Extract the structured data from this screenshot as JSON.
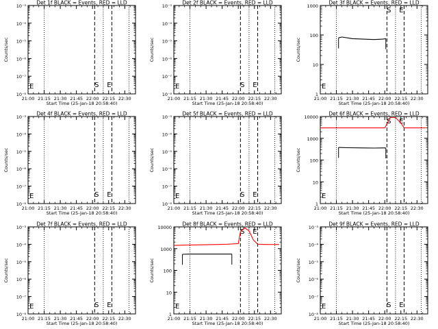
{
  "figure": {
    "x_tick_labels": [
      "21:00",
      "21:15",
      "21:30",
      "21:45",
      "22:00",
      "22:15",
      "22:30"
    ],
    "start_minute": 1260,
    "x_range_minutes": [
      1260,
      1360
    ],
    "dotted_lines_minutes": [
      1275,
      1330,
      1354
    ],
    "dashed_lines_minutes": [
      1322,
      1338
    ],
    "ylabel": "Counts/sec",
    "xlabel": "Start Time (25-Jan-18 20:58:40)",
    "marker_s": "S",
    "marker_e": "E",
    "color_black": "#000000",
    "color_red": "#ff0000"
  },
  "chart_data": [
    {
      "type": "line",
      "title": "Det 1f BLACK = Events, RED = LLD",
      "yscale": "log",
      "ylim": [
        1e-08,
        0.001
      ],
      "ytick_labels": [
        "10⁻³",
        "10⁻⁴",
        "10⁻⁵",
        "10⁻⁶",
        "10⁻⁷",
        "10⁻⁸"
      ],
      "series": []
    },
    {
      "type": "line",
      "title": "Det 2f BLACK = Events, RED = LLD",
      "yscale": "log",
      "ylim": [
        1e-08,
        0.001
      ],
      "ytick_labels": [
        "10⁻³",
        "10⁻⁴",
        "10⁻⁵",
        "10⁻⁶",
        "10⁻⁷",
        "10⁻⁸"
      ],
      "series": []
    },
    {
      "type": "line",
      "title": "Det 3f BLACK = Events, RED = LLD",
      "yscale": "log",
      "ylim": [
        1,
        1000
      ],
      "ytick_labels": [
        "1000",
        "100",
        "10",
        "1"
      ],
      "series": [
        {
          "color": "black",
          "x": [
            1277,
            1280,
            1290,
            1300,
            1310,
            1318,
            1321
          ],
          "y": [
            80,
            85,
            75,
            72,
            70,
            72,
            75
          ],
          "edge_drop": [
            1277,
            1321
          ]
        }
      ]
    },
    {
      "type": "line",
      "title": "Det 4f BLACK = Events, RED = LLD",
      "yscale": "log",
      "ylim": [
        1e-08,
        0.001
      ],
      "ytick_labels": [
        "10⁻³",
        "10⁻⁴",
        "10⁻⁵",
        "10⁻⁶",
        "10⁻⁷",
        "10⁻⁸"
      ],
      "series": []
    },
    {
      "type": "line",
      "title": "Det 5f BLACK = Events, RED = LLD",
      "yscale": "log",
      "ylim": [
        1e-08,
        0.001
      ],
      "ytick_labels": [
        "10⁻³",
        "10⁻⁴",
        "10⁻⁵",
        "10⁻⁶",
        "10⁻⁷",
        "10⁻⁸"
      ],
      "series": []
    },
    {
      "type": "line",
      "title": "Det 6f BLACK = Events, RED = LLD",
      "yscale": "log",
      "ylim": [
        1,
        10000
      ],
      "ytick_labels": [
        "10000",
        "1000",
        "100",
        "10",
        "1"
      ],
      "series": [
        {
          "color": "red",
          "x": [
            1260,
            1270,
            1290,
            1310,
            1320,
            1322,
            1325,
            1330,
            1335,
            1338,
            1345,
            1358
          ],
          "y": [
            3000,
            3000,
            3000,
            3000,
            3000,
            4500,
            9000,
            9000,
            5000,
            3000,
            3000,
            3000
          ]
        },
        {
          "color": "black",
          "x": [
            1277,
            1285,
            1300,
            1310,
            1318,
            1321
          ],
          "y": [
            380,
            370,
            360,
            355,
            360,
            360
          ],
          "edge_drop": [
            1277,
            1321
          ]
        }
      ]
    },
    {
      "type": "line",
      "title": "Det 7f BLACK = Events, RED = LLD",
      "yscale": "log",
      "ylim": [
        1e-08,
        0.001
      ],
      "ytick_labels": [
        "10⁻³",
        "10⁻⁴",
        "10⁻⁵",
        "10⁻⁶",
        "10⁻⁷",
        "10⁻⁸"
      ],
      "series": []
    },
    {
      "type": "line",
      "title": "Det 8f BLACK = Events, RED = LLD",
      "yscale": "log",
      "ylim": [
        1,
        10000
      ],
      "ytick_labels": [
        "10000",
        "1000",
        "100",
        "10",
        "1"
      ],
      "series": [
        {
          "color": "red",
          "x": [
            1260,
            1270,
            1285,
            1300,
            1310,
            1320,
            1322,
            1326,
            1330,
            1334,
            1338,
            1345,
            1358
          ],
          "y": [
            1400,
            1450,
            1500,
            1550,
            1600,
            1700,
            6000,
            9000,
            6500,
            2500,
            1600,
            1550,
            1550
          ]
        },
        {
          "color": "black",
          "x": [
            1268,
            1275,
            1290,
            1305,
            1314
          ],
          "y": [
            550,
            560,
            560,
            560,
            560
          ],
          "edge_drop": [
            1268,
            1314
          ]
        }
      ]
    },
    {
      "type": "line",
      "title": "Det 9f BLACK = Events, RED = LLD",
      "yscale": "log",
      "ylim": [
        1e-08,
        0.001
      ],
      "ytick_labels": [
        "10⁻³",
        "10⁻⁴",
        "10⁻⁵",
        "10⁻⁶",
        "10⁻⁷",
        "10⁻⁸"
      ],
      "series": []
    }
  ]
}
